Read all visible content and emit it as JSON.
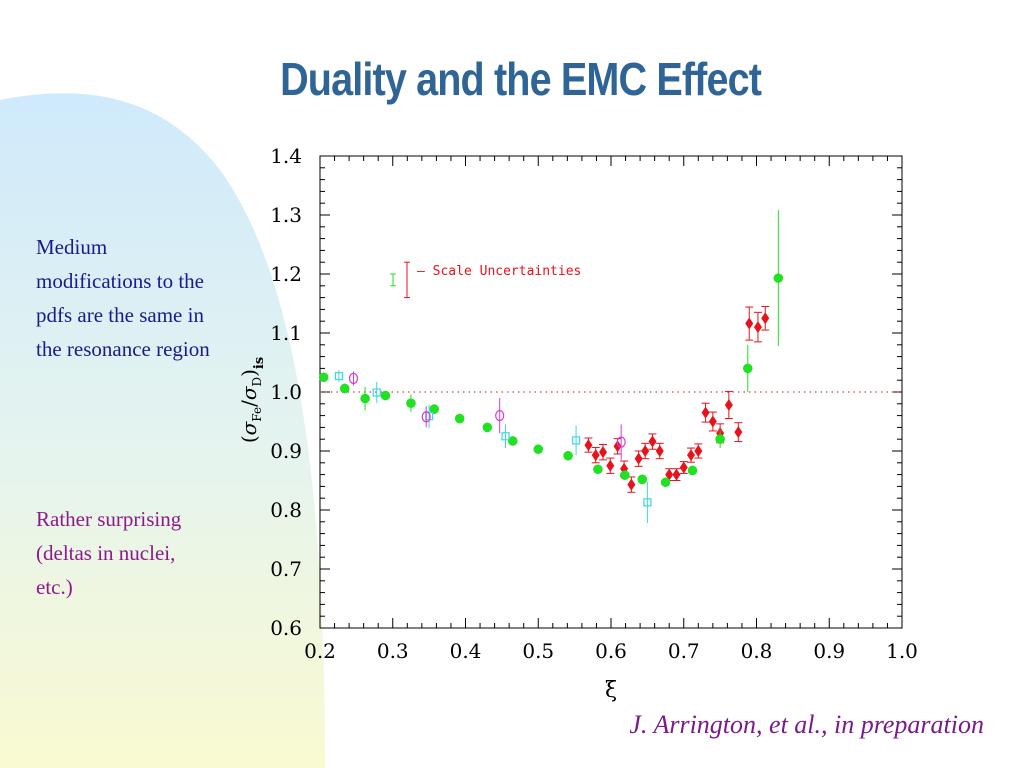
{
  "slide": {
    "title": "Duality and the EMC Effect",
    "note_1": "Medium modifications to the pdfs are the same in the resonance region",
    "note_2": "Rather surprising (deltas in nuclei, etc.)",
    "citation": "J. Arrington, et al., in preparation"
  },
  "colors": {
    "title": "#2e6496",
    "note_1": "#1a1a8c",
    "note_2": "#8c1a8c",
    "citation": "#7a1a8c",
    "red": "#e8121c",
    "green": "#22e022",
    "cyan": "#3ad8e8",
    "magenta": "#d83ad8",
    "reference_line": "#d84040"
  },
  "chart_data": {
    "type": "scatter",
    "xlabel": "ξ",
    "ylabel": "(σFe/σD)is",
    "ylabel_parts": {
      "open": "(",
      "num": "σ",
      "num_sub": "Fe",
      "slash": "/",
      "den": "σ",
      "den_sub": "D",
      "close": ")",
      "outer_sub": "is"
    },
    "xlim": [
      0.2,
      1.0
    ],
    "ylim": [
      0.6,
      1.4
    ],
    "x_ticks": [
      "0.2",
      "0.3",
      "0.4",
      "0.5",
      "0.6",
      "0.7",
      "0.8",
      "0.9",
      "1.0"
    ],
    "y_ticks": [
      "0.6",
      "0.7",
      "0.8",
      "0.9",
      "1.0",
      "1.1",
      "1.2",
      "1.3",
      "1.4"
    ],
    "reference_line": 1.0,
    "legend_text": "– Scale Uncertainties",
    "legend_position": "top-left",
    "series": [
      {
        "marker": "diamond",
        "color": "#e8121c",
        "points": [
          [
            0.569,
            0.91,
            0.012
          ],
          [
            0.579,
            0.893,
            0.013
          ],
          [
            0.589,
            0.898,
            0.013
          ],
          [
            0.599,
            0.875,
            0.013
          ],
          [
            0.609,
            0.908,
            0.013
          ],
          [
            0.618,
            0.87,
            0.013
          ],
          [
            0.628,
            0.843,
            0.013
          ],
          [
            0.638,
            0.887,
            0.013
          ],
          [
            0.647,
            0.9,
            0.013
          ],
          [
            0.657,
            0.916,
            0.013
          ],
          [
            0.667,
            0.9,
            0.013
          ],
          [
            0.68,
            0.86,
            0.01
          ],
          [
            0.69,
            0.86,
            0.01
          ],
          [
            0.7,
            0.872,
            0.01
          ],
          [
            0.71,
            0.893,
            0.012
          ],
          [
            0.72,
            0.9,
            0.012
          ],
          [
            0.73,
            0.965,
            0.016
          ],
          [
            0.74,
            0.95,
            0.016
          ],
          [
            0.75,
            0.93,
            0.016
          ],
          [
            0.762,
            0.978,
            0.023
          ],
          [
            0.775,
            0.932,
            0.016
          ],
          [
            0.79,
            1.116,
            0.028
          ],
          [
            0.802,
            1.11,
            0.025
          ],
          [
            0.812,
            1.125,
            0.02
          ]
        ]
      },
      {
        "marker": "circle",
        "color": "#22e022",
        "points": [
          [
            0.205,
            1.025,
            0.008
          ],
          [
            0.234,
            1.006,
            0.008
          ],
          [
            0.262,
            0.989,
            0.02
          ],
          [
            0.29,
            0.994,
            0.008
          ],
          [
            0.325,
            0.981,
            0.015
          ],
          [
            0.357,
            0.971,
            0.008
          ],
          [
            0.392,
            0.955,
            0.008
          ],
          [
            0.43,
            0.94,
            0.008
          ],
          [
            0.465,
            0.917,
            0.008
          ],
          [
            0.5,
            0.903,
            0.008
          ],
          [
            0.541,
            0.892,
            0.008
          ],
          [
            0.582,
            0.869,
            0.008
          ],
          [
            0.619,
            0.859,
            0.008
          ],
          [
            0.643,
            0.852,
            0.008
          ],
          [
            0.675,
            0.847,
            0.008
          ],
          [
            0.712,
            0.867,
            0.008
          ],
          [
            0.75,
            0.92,
            0.015
          ],
          [
            0.788,
            1.04,
            0.04
          ],
          [
            0.83,
            1.193,
            0.115
          ]
        ]
      },
      {
        "marker": "square",
        "color": "#3ad8e8",
        "points": [
          [
            0.226,
            1.027,
            0.01
          ],
          [
            0.278,
            0.999,
            0.018
          ],
          [
            0.35,
            0.959,
            0.02
          ],
          [
            0.455,
            0.925,
            0.02
          ],
          [
            0.552,
            0.918,
            0.025
          ],
          [
            0.65,
            0.813,
            0.035
          ]
        ]
      },
      {
        "marker": "circle_open",
        "color": "#d83ad8",
        "points": [
          [
            0.246,
            1.023,
            0.012
          ],
          [
            0.346,
            0.958,
            0.018
          ],
          [
            0.447,
            0.96,
            0.03
          ],
          [
            0.614,
            0.915,
            0.03
          ]
        ]
      }
    ],
    "legend_error_bars": [
      {
        "color": "#22e022",
        "half_range": 0.01
      },
      {
        "color": "#e8121c",
        "half_range": 0.03
      }
    ]
  }
}
